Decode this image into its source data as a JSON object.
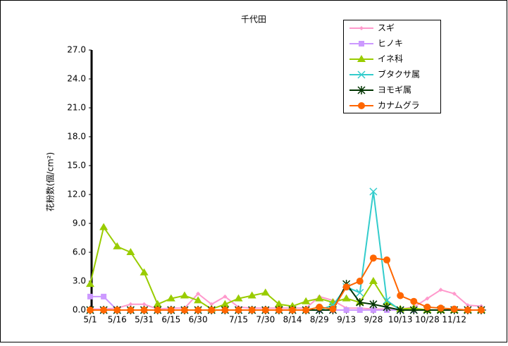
{
  "chart_data": {
    "type": "line",
    "title": "千代田",
    "y_label": "花粉数(個/cm²)",
    "categories": [
      "5/1",
      null,
      "5/16",
      null,
      "5/31",
      null,
      "6/15",
      null,
      "6/30",
      null,
      null,
      "7/15",
      null,
      "7/30",
      null,
      "8/14",
      null,
      "8/29",
      null,
      "9/13",
      null,
      "9/28",
      null,
      "10/13",
      null,
      "10/28",
      null,
      "11/12",
      null,
      null
    ],
    "ylim": [
      0,
      27
    ],
    "yticks": [
      {
        "value": 0,
        "label": "0.0"
      },
      {
        "value": 3,
        "label": "3.0"
      },
      {
        "value": 6,
        "label": "6.0"
      },
      {
        "value": 9,
        "label": "9.0"
      },
      {
        "value": 12,
        "label": "12.0"
      },
      {
        "value": 15,
        "label": "15.0"
      },
      {
        "value": 18,
        "label": "18.0"
      },
      {
        "value": 21,
        "label": "21.0"
      },
      {
        "value": 24,
        "label": "24.0"
      },
      {
        "value": 27,
        "label": "27.0"
      }
    ],
    "grid": false,
    "legend": "top-right",
    "series": [
      {
        "name": "スギ",
        "color": "#ff99cc",
        "marker": "diamond",
        "values": [
          0.1,
          0.1,
          0.2,
          0.6,
          0.6,
          0.1,
          0.2,
          0.2,
          1.7,
          0.6,
          1.4,
          0.3,
          0.2,
          0.2,
          0.2,
          0.2,
          0.2,
          1.4,
          1.0,
          0.2,
          0.2,
          0.1,
          0.1,
          0.1,
          0.3,
          1.2,
          2.1,
          1.7,
          0.5,
          0.4
        ]
      },
      {
        "name": "ヒノキ",
        "color": "#cc99ff",
        "marker": "square",
        "values": [
          1.4,
          1.4,
          0,
          0,
          0,
          0,
          0,
          0,
          0,
          0,
          0,
          0,
          0,
          0,
          0,
          0,
          0,
          0,
          0,
          0,
          0,
          0,
          0,
          0,
          0,
          0,
          0,
          0,
          0,
          0
        ]
      },
      {
        "name": "イネ科",
        "color": "#99cc00",
        "marker": "triangle",
        "values": [
          2.7,
          8.6,
          6.6,
          6.0,
          3.9,
          0.6,
          1.2,
          1.5,
          1.0,
          0.1,
          0.6,
          1.2,
          1.5,
          1.8,
          0.6,
          0.4,
          0.9,
          1.2,
          0.8,
          1.2,
          0.8,
          3.0,
          0.8,
          0.1,
          0.2,
          0,
          0,
          0,
          0,
          0
        ]
      },
      {
        "name": "ブタクサ属",
        "color": "#33cccc",
        "marker": "x",
        "values": [
          0,
          0,
          0,
          0,
          0,
          0,
          0,
          0,
          0,
          0,
          0,
          0,
          0,
          0,
          0,
          0,
          0,
          0,
          0.5,
          2.4,
          1.8,
          12.3,
          1.0,
          0,
          0,
          0,
          0,
          0,
          0,
          0
        ]
      },
      {
        "name": "ヨモギ属",
        "color": "#003300",
        "marker": "star",
        "values": [
          0,
          0,
          0,
          0,
          0,
          0,
          0,
          0,
          0,
          0,
          0,
          0,
          0,
          0,
          0,
          0,
          0,
          0,
          0,
          2.7,
          0.8,
          0.6,
          0.3,
          0,
          0,
          0,
          0,
          0,
          0,
          0
        ]
      },
      {
        "name": "カナムグラ",
        "color": "#ff6600",
        "marker": "circle",
        "values": [
          0,
          0,
          0,
          0,
          0,
          0,
          0,
          0,
          0,
          0,
          0,
          0,
          0,
          0,
          0,
          0,
          0,
          0.3,
          0.1,
          2.4,
          3.0,
          5.4,
          5.2,
          1.5,
          0.9,
          0.3,
          0.2,
          0.1,
          0,
          0
        ]
      }
    ]
  }
}
